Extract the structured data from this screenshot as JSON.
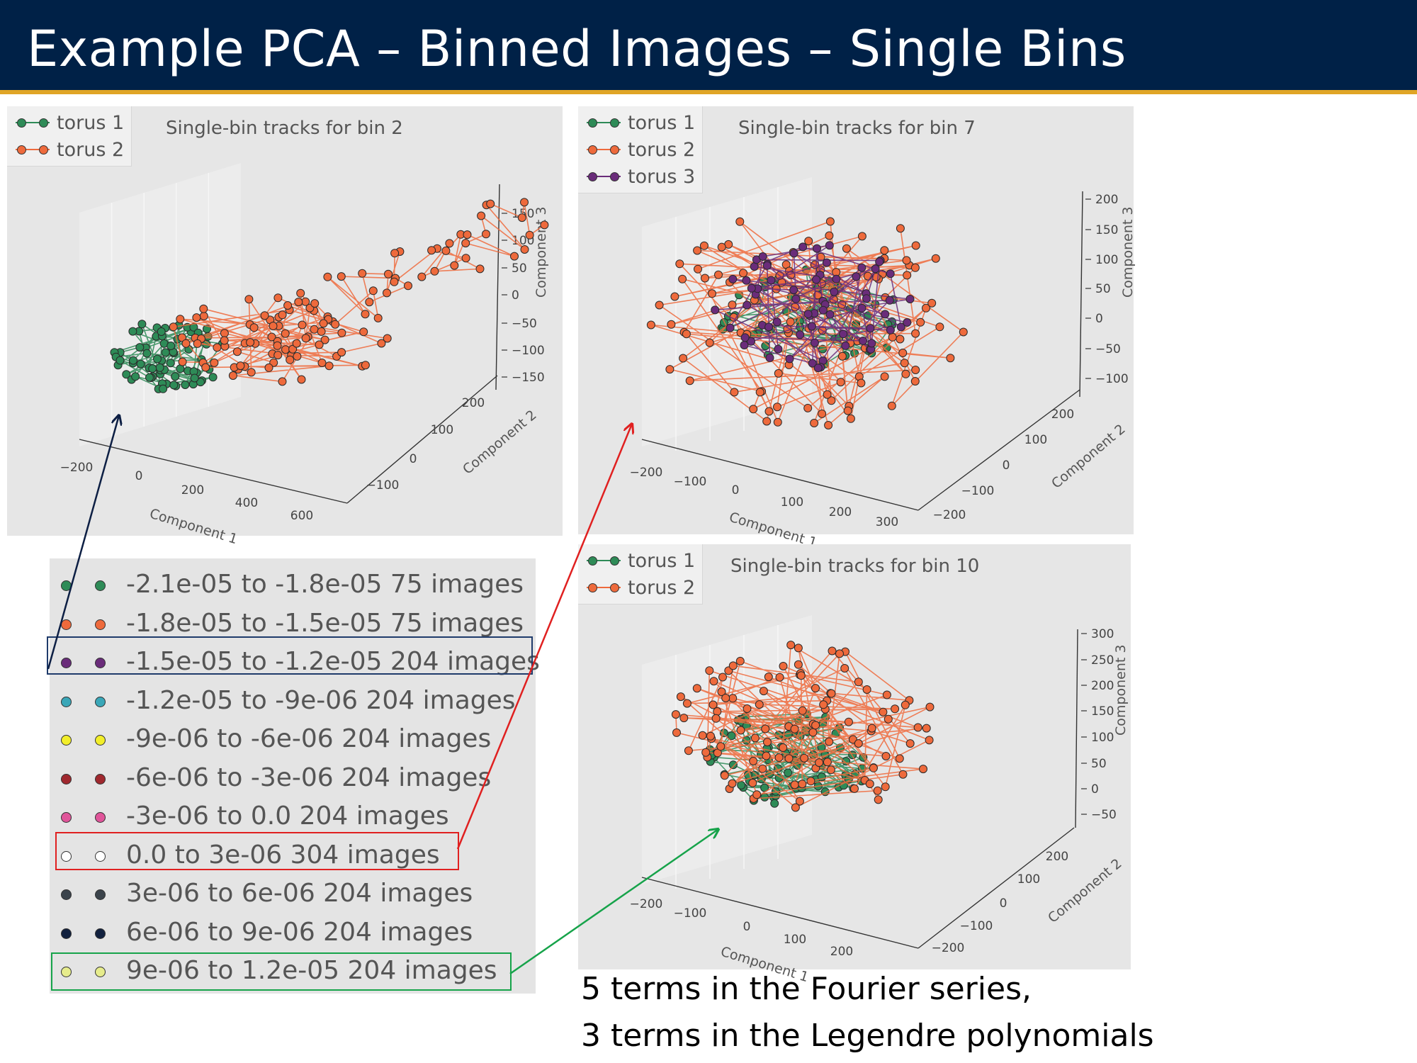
{
  "title": "Example PCA – Binned Images – Single Bins",
  "colors": {
    "torus1": "#2e8b57",
    "torus2": "#ee6a3c",
    "torus3": "#6a2c7a",
    "header": "#002147",
    "accent": "#e0a526"
  },
  "chart_data": [
    {
      "type": "scatter",
      "title": "Single-bin tracks for bin 2",
      "xlabel": "Component 1",
      "ylabel": "Component 2",
      "zlabel": "Component 3",
      "xticks": [
        "−200",
        "0",
        "200",
        "400",
        "600"
      ],
      "yticks": [
        "−100",
        "0",
        "100",
        "200"
      ],
      "zticks": [
        "150",
        "100",
        "50",
        "0",
        "−50",
        "−100",
        "−150"
      ],
      "xlim": [
        -200,
        600
      ],
      "ylim": [
        -100,
        200
      ],
      "zlim": [
        -150,
        150
      ],
      "series": [
        {
          "name": "torus 1"
        },
        {
          "name": "torus 2"
        }
      ]
    },
    {
      "type": "scatter",
      "title": "Single-bin tracks for bin 7",
      "xlabel": "Component 1",
      "ylabel": "Component 2",
      "zlabel": "Component 3",
      "xticks": [
        "−200",
        "−100",
        "0",
        "100",
        "200",
        "300"
      ],
      "yticks": [
        "−200",
        "−100",
        "0",
        "100",
        "200"
      ],
      "zticks": [
        "200",
        "150",
        "100",
        "50",
        "0",
        "−50",
        "−100"
      ],
      "xlim": [
        -200,
        300
      ],
      "ylim": [
        -200,
        200
      ],
      "zlim": [
        -100,
        200
      ],
      "series": [
        {
          "name": "torus 1"
        },
        {
          "name": "torus 2"
        },
        {
          "name": "torus 3"
        }
      ]
    },
    {
      "type": "scatter",
      "title": "Single-bin tracks for bin 10",
      "xlabel": "Component 1",
      "ylabel": "Component 2",
      "zlabel": "Component 3",
      "xticks": [
        "−200",
        "−100",
        "0",
        "100",
        "200"
      ],
      "yticks": [
        "−200",
        "−100",
        "0",
        "100",
        "200"
      ],
      "zticks": [
        "300",
        "250",
        "200",
        "150",
        "100",
        "50",
        "0",
        "−50"
      ],
      "xlim": [
        -200,
        200
      ],
      "ylim": [
        -200,
        200
      ],
      "zlim": [
        -50,
        300
      ],
      "series": [
        {
          "name": "torus 1"
        },
        {
          "name": "torus 2"
        }
      ]
    }
  ],
  "color_key": [
    {
      "label": "-2.1e-05 to -1.8e-05 75 images",
      "color": "#2e8b57"
    },
    {
      "label": "-1.8e-05 to -1.5e-05 75 images",
      "color": "#ee6a3c"
    },
    {
      "label": "-1.5e-05 to -1.2e-05 204 images",
      "color": "#6a2c7a"
    },
    {
      "label": "-1.2e-05 to -9e-06 204 images",
      "color": "#3aa7b8"
    },
    {
      "label": "-9e-06 to -6e-06 204 images",
      "color": "#f2ee2a"
    },
    {
      "label": "-6e-06 to -3e-06 204 images",
      "color": "#a0282e"
    },
    {
      "label": "-3e-06 to 0.0 204 images",
      "color": "#e0559a"
    },
    {
      "label": "0.0 to 3e-06 304 images",
      "color": "#ffffff"
    },
    {
      "label": "3e-06 to 6e-06 204 images",
      "color": "#3b434b"
    },
    {
      "label": "6e-06 to 9e-06 204 images",
      "color": "#12213f"
    },
    {
      "label": "9e-06 to 1.2e-05 204 images",
      "color": "#e6ec8c"
    }
  ],
  "caption": {
    "line1": "5 terms in the Fourier series,",
    "line2": "3 terms in the Legendre polynomials"
  }
}
